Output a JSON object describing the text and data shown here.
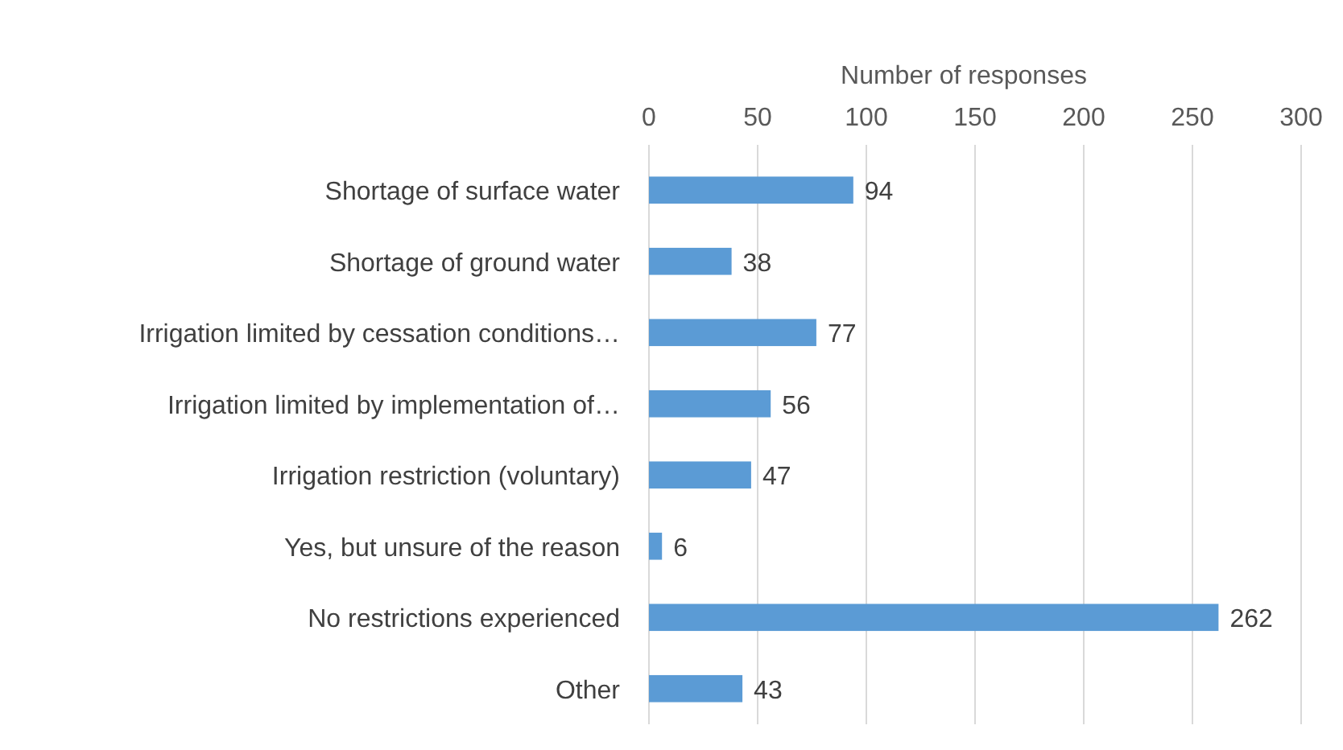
{
  "chart_data": {
    "type": "bar",
    "orientation": "horizontal",
    "xlabel": "Number of responses",
    "categories": [
      "Shortage of surface water",
      "Shortage of ground water",
      "Irrigation limited by cessation conditions…",
      "Irrigation limited by implementation of…",
      "Irrigation restriction (voluntary)",
      "Yes, but unsure of the reason",
      "No restrictions experienced",
      "Other"
    ],
    "values": [
      94,
      38,
      77,
      56,
      47,
      6,
      262,
      43
    ],
    "color": "#5b9bd5",
    "data_labels": true,
    "xlim": [
      0,
      300
    ],
    "xticks": [
      0,
      50,
      100,
      150,
      200,
      250,
      300
    ],
    "grid": "x"
  }
}
